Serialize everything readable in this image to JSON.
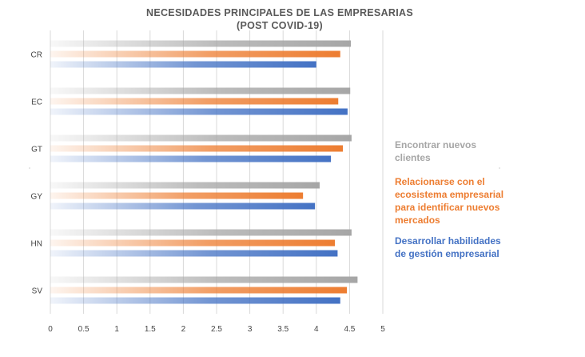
{
  "chart_data": {
    "type": "bar",
    "orientation": "horizontal",
    "title_lines": [
      "NECESIDADES PRINCIPALES DE LAS EMPRESARIAS",
      "(POST COVID-19)"
    ],
    "categories": [
      "CR",
      "EC",
      "GT",
      "GY",
      "HN",
      "SV"
    ],
    "series": [
      {
        "name_lines": [
          "Encontrar nuevos",
          "clientes"
        ],
        "color": "#a6a6a6",
        "values": [
          4.52,
          4.51,
          4.53,
          4.05,
          4.53,
          4.62
        ]
      },
      {
        "name_lines": [
          "Relacionarse con el",
          "ecosistema empresarial",
          "para identificar nuevos",
          "mercados"
        ],
        "color": "#ed7d31",
        "values": [
          4.36,
          4.33,
          4.4,
          3.8,
          4.28,
          4.46
        ]
      },
      {
        "name_lines": [
          "Desarrollar habilidades",
          "de gestión empresarial"
        ],
        "color": "#4472c4",
        "values": [
          4.0,
          4.47,
          4.22,
          3.98,
          4.32,
          4.36
        ]
      }
    ],
    "x_ticks": [
      "0",
      "0.5",
      "1",
      "1.5",
      "2",
      "2.5",
      "3",
      "3.5",
      "4",
      "4.5",
      "5"
    ],
    "xlim": [
      0,
      5
    ],
    "grid": true,
    "legend_position": "right"
  }
}
